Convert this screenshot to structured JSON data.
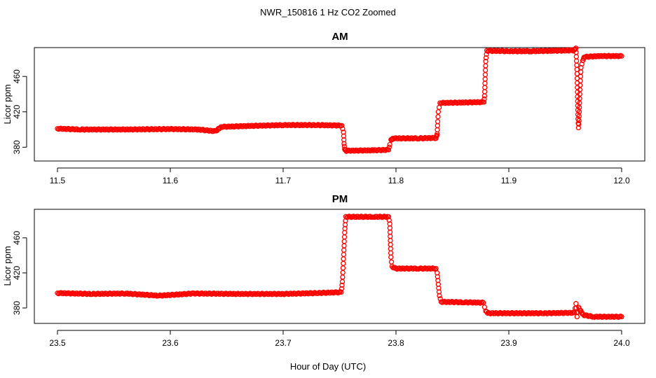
{
  "figure": {
    "title": "NWR_150816  1 Hz CO2 Zoomed",
    "xlabel": "Hour of Day (UTC)"
  },
  "colors": {
    "points": "#ff0000",
    "axes": "#000000",
    "background": "#ffffff"
  },
  "chart_data": [
    {
      "type": "scatter",
      "title": "AM",
      "ylabel": "Licor ppm",
      "xlim": [
        11.5,
        12.0
      ],
      "ylim": [
        366,
        491
      ],
      "xticks": [
        11.5,
        11.6,
        11.7,
        11.8,
        11.9,
        12.0
      ],
      "xtick_labels": [
        "11.5",
        "11.6",
        "11.7",
        "11.8",
        "11.9",
        "12.0"
      ],
      "yticks": [
        380,
        420,
        460
      ],
      "ytick_labels": [
        "380",
        "420",
        "460"
      ],
      "series": [
        {
          "points": [
            [
              11.5,
              401
            ],
            [
              11.52,
              400
            ],
            [
              11.56,
              400
            ],
            [
              11.6,
              400.5
            ],
            [
              11.625,
              400
            ],
            [
              11.64,
              398
            ],
            [
              11.645,
              403
            ],
            [
              11.67,
              404
            ],
            [
              11.7,
              405
            ],
            [
              11.73,
              405
            ],
            [
              11.752,
              404.5
            ],
            [
              11.7535,
              397
            ],
            [
              11.754,
              384
            ],
            [
              11.7545,
              378
            ],
            [
              11.756,
              376
            ],
            [
              11.78,
              376.5
            ],
            [
              11.7935,
              377
            ],
            [
              11.7945,
              383
            ],
            [
              11.7955,
              388
            ],
            [
              11.797,
              390
            ],
            [
              11.82,
              390
            ],
            [
              11.8355,
              390.5
            ],
            [
              11.8365,
              395
            ],
            [
              11.837,
              409
            ],
            [
              11.8375,
              420
            ],
            [
              11.839,
              430
            ],
            [
              11.86,
              430.5
            ],
            [
              11.878,
              431
            ],
            [
              11.8785,
              438
            ],
            [
              11.879,
              457
            ],
            [
              11.8795,
              477
            ],
            [
              11.8805,
              489
            ],
            [
              11.9,
              488.5
            ],
            [
              11.92,
              488.5
            ],
            [
              11.94,
              489
            ],
            [
              11.958,
              489.5
            ],
            [
              11.9595,
              492
            ],
            [
              11.9605,
              463
            ],
            [
              11.961,
              432
            ],
            [
              11.9613,
              412
            ],
            [
              11.9617,
              402
            ],
            [
              11.9622,
              410
            ],
            [
              11.963,
              445
            ],
            [
              11.964,
              470
            ],
            [
              11.9655,
              478
            ],
            [
              11.967,
              482
            ],
            [
              11.98,
              483
            ],
            [
              12.0,
              483
            ]
          ]
        }
      ]
    },
    {
      "type": "scatter",
      "title": "PM",
      "ylabel": "Licor ppm",
      "xlim": [
        23.5,
        24.0
      ],
      "ylim": [
        364,
        491
      ],
      "xticks": [
        23.5,
        23.6,
        23.7,
        23.8,
        23.9,
        24.0
      ],
      "xtick_labels": [
        "23.5",
        "23.6",
        "23.7",
        "23.8",
        "23.9",
        "24.0"
      ],
      "yticks": [
        380,
        420,
        460
      ],
      "ytick_labels": [
        "380",
        "420",
        "460"
      ],
      "series": [
        {
          "points": [
            [
              23.5,
              397
            ],
            [
              23.53,
              396
            ],
            [
              23.56,
              396.5
            ],
            [
              23.59,
              394
            ],
            [
              23.62,
              396.5
            ],
            [
              23.66,
              396
            ],
            [
              23.7,
              396
            ],
            [
              23.73,
              397
            ],
            [
              23.7515,
              398
            ],
            [
              23.7525,
              410
            ],
            [
              23.7535,
              436
            ],
            [
              23.7545,
              466
            ],
            [
              23.7555,
              484
            ],
            [
              23.78,
              484
            ],
            [
              23.7935,
              484
            ],
            [
              23.7945,
              476
            ],
            [
              23.795,
              457
            ],
            [
              23.7955,
              438
            ],
            [
              23.7965,
              427
            ],
            [
              23.8,
              425
            ],
            [
              23.82,
              425
            ],
            [
              23.8355,
              425
            ],
            [
              23.8365,
              420
            ],
            [
              23.8375,
              407
            ],
            [
              23.8385,
              394
            ],
            [
              23.84,
              387
            ],
            [
              23.86,
              386.5
            ],
            [
              23.8775,
              386
            ],
            [
              23.8785,
              381
            ],
            [
              23.8795,
              376
            ],
            [
              23.882,
              374
            ],
            [
              23.9,
              374
            ],
            [
              23.93,
              374
            ],
            [
              23.958,
              374.5
            ],
            [
              23.9595,
              385
            ],
            [
              23.9605,
              370
            ],
            [
              23.962,
              380
            ],
            [
              23.966,
              372
            ],
            [
              23.975,
              370
            ],
            [
              24.0,
              370
            ]
          ]
        }
      ]
    }
  ]
}
